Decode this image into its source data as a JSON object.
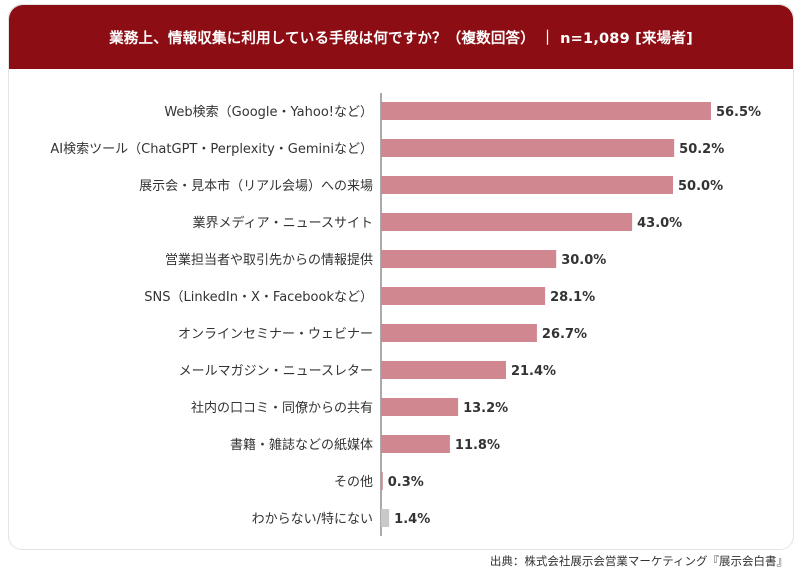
{
  "header": {
    "title": "業務上、情報収集に利用している手段は何ですか？（複数回答） ｜ n=1,089 [来場者]"
  },
  "source": "出典：株式会社展示会営業マーケティング『展示会白書』",
  "colors": {
    "header_bg": "#8c0d13",
    "bar": "#d08790",
    "bar_other": "#c9c9c9",
    "axis": "#555555"
  },
  "chart_data": {
    "type": "bar",
    "orientation": "horizontal",
    "title": "業務上、情報収集に利用している手段は何ですか？（複数回答） ｜ n=1,089 [来場者]",
    "xlim": [
      0,
      60
    ],
    "grid": false,
    "categories": [
      "Web検索（Google・Yahoo!など）",
      "AI検索ツール（ChatGPT・Perplexity・Geminiなど）",
      "展示会・見本市（リアル会場）への来場",
      "業界メディア・ニュースサイト",
      "営業担当者や取引先からの情報提供",
      "SNS（LinkedIn・X・Facebookなど）",
      "オンラインセミナー・ウェビナー",
      "メールマガジン・ニュースレター",
      "社内の口コミ・同僚からの共有",
      "書籍・雑誌などの紙媒体",
      "その他",
      "わからない/特にない"
    ],
    "values": [
      56.5,
      50.2,
      50.0,
      43.0,
      30.0,
      28.1,
      26.7,
      21.4,
      13.2,
      11.8,
      0.3,
      1.4
    ],
    "value_labels": [
      "56.5%",
      "50.2%",
      "50.0%",
      "43.0%",
      "30.0%",
      "28.1%",
      "26.7%",
      "21.4%",
      "13.2%",
      "11.8%",
      "0.3%",
      "1.4%"
    ]
  }
}
